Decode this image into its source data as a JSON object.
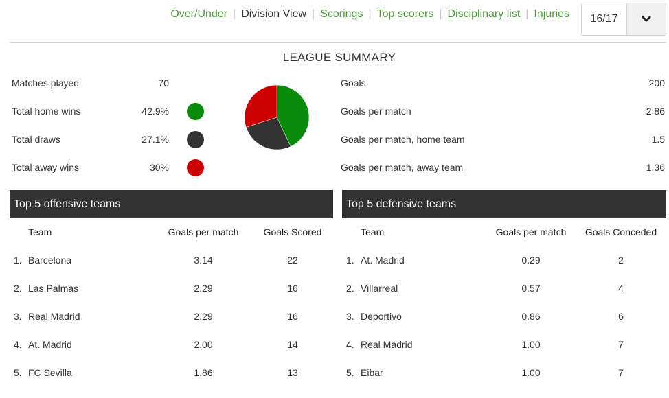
{
  "nav": {
    "tabs": [
      "Over/Under",
      "Division View",
      "Scorings",
      "Top scorers",
      "Disciplinary list",
      "Injuries"
    ],
    "active": "Division View",
    "season": "16/17"
  },
  "summary": {
    "title": "LEAGUE SUMMARY",
    "matches_played_label": "Matches played",
    "matches_played": "70",
    "home_wins_label": "Total home wins",
    "home_wins": "42.9%",
    "draws_label": "Total draws",
    "draws": "27.1%",
    "away_wins_label": "Total away wins",
    "away_wins": "30%",
    "goals_label": "Goals",
    "goals": "200",
    "gpm_label": "Goals per match",
    "gpm": "2.86",
    "gpm_home_label": "Goals per match, home team",
    "gpm_home": "1.5",
    "gpm_away_label": "Goals per match, away team",
    "gpm_away": "1.36",
    "colors": {
      "home": "#0a8a0a",
      "draw": "#333333",
      "away": "#cc0000"
    },
    "pie": [
      {
        "key": "home",
        "value": 42.9
      },
      {
        "key": "draw",
        "value": 27.1
      },
      {
        "key": "away",
        "value": 30
      }
    ]
  },
  "offensive": {
    "title": "Top 5 offensive teams",
    "headers": {
      "team": "Team",
      "gpm": "Goals per match",
      "goals": "Goals Scored"
    },
    "rows": [
      {
        "rank": "1.",
        "team": "Barcelona",
        "gpm": "3.14",
        "goals": "22"
      },
      {
        "rank": "2.",
        "team": "Las Palmas",
        "gpm": "2.29",
        "goals": "16"
      },
      {
        "rank": "3.",
        "team": "Real Madrid",
        "gpm": "2.29",
        "goals": "16"
      },
      {
        "rank": "4.",
        "team": "At. Madrid",
        "gpm": "2.00",
        "goals": "14"
      },
      {
        "rank": "5.",
        "team": "FC Sevilla",
        "gpm": "1.86",
        "goals": "13"
      }
    ]
  },
  "defensive": {
    "title": "Top 5 defensive teams",
    "headers": {
      "team": "Team",
      "gpm": "Goals per match",
      "goals": "Goals Conceded"
    },
    "rows": [
      {
        "rank": "1.",
        "team": "At. Madrid",
        "gpm": "0.29",
        "goals": "2"
      },
      {
        "rank": "2.",
        "team": "Villarreal",
        "gpm": "0.57",
        "goals": "4"
      },
      {
        "rank": "3.",
        "team": "Deportivo",
        "gpm": "0.86",
        "goals": "6"
      },
      {
        "rank": "4.",
        "team": "Real Madrid",
        "gpm": "1.00",
        "goals": "7"
      },
      {
        "rank": "5.",
        "team": "Eibar",
        "gpm": "1.00",
        "goals": "7"
      }
    ]
  }
}
